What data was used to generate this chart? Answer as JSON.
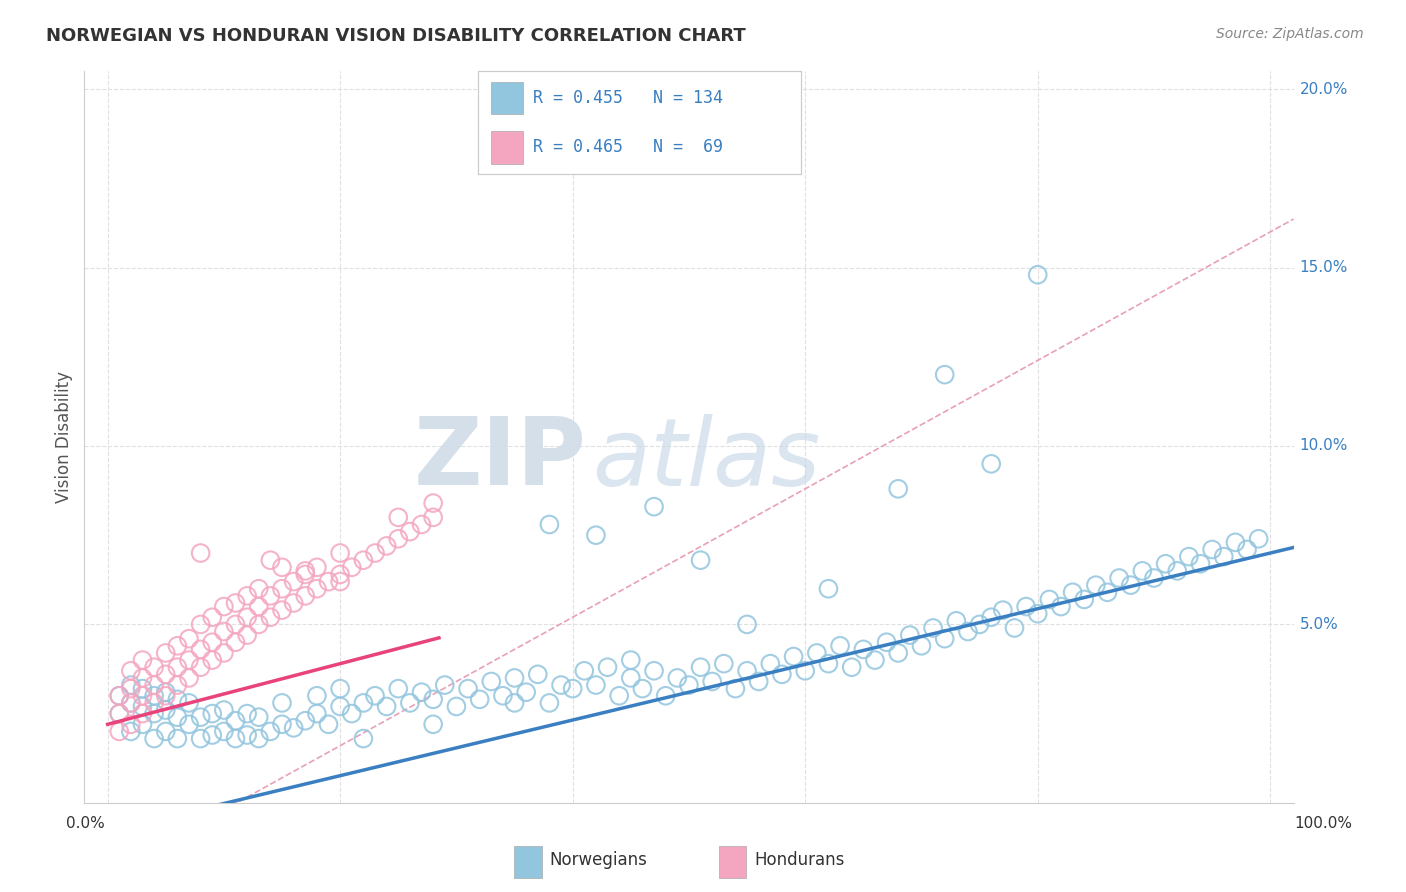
{
  "title": "NORWEGIAN VS HONDURAN VISION DISABILITY CORRELATION CHART",
  "source": "Source: ZipAtlas.com",
  "ylabel": "Vision Disability",
  "ylim": [
    0,
    0.205
  ],
  "xlim": [
    -0.02,
    1.02
  ],
  "yticks": [
    0.05,
    0.1,
    0.15,
    0.2
  ],
  "ytick_labels": [
    "5.0%",
    "10.0%",
    "15.0%",
    "20.0%"
  ],
  "blue_color": "#92C5DE",
  "pink_color": "#F4A6C0",
  "blue_edge_color": "#5B9EC9",
  "pink_edge_color": "#E87FA8",
  "blue_line_color": "#3A7FC1",
  "pink_line_color": "#E8437A",
  "dashed_line_color": "#E8A0B8",
  "legend_R_blue": "R = 0.455",
  "legend_N_blue": "N = 134",
  "legend_R_pink": "R = 0.465",
  "legend_N_pink": "N =  69",
  "watermark_zip": "ZIP",
  "watermark_atlas": "atlas",
  "background_color": "#ffffff",
  "grid_color": "#e0e0e0",
  "blue_line_intercept": -0.008,
  "blue_line_slope": 0.078,
  "pink_line_intercept": 0.022,
  "pink_line_slope": 0.085,
  "dashed_line_intercept": -0.02,
  "dashed_line_slope": 0.18,
  "blue_scatter_x": [
    0.01,
    0.01,
    0.02,
    0.02,
    0.02,
    0.03,
    0.03,
    0.03,
    0.04,
    0.04,
    0.04,
    0.05,
    0.05,
    0.05,
    0.06,
    0.06,
    0.06,
    0.07,
    0.07,
    0.08,
    0.08,
    0.09,
    0.09,
    0.1,
    0.1,
    0.11,
    0.11,
    0.12,
    0.12,
    0.13,
    0.13,
    0.14,
    0.15,
    0.15,
    0.16,
    0.17,
    0.18,
    0.18,
    0.19,
    0.2,
    0.2,
    0.21,
    0.22,
    0.23,
    0.24,
    0.25,
    0.26,
    0.27,
    0.28,
    0.29,
    0.3,
    0.31,
    0.32,
    0.33,
    0.34,
    0.35,
    0.36,
    0.37,
    0.38,
    0.39,
    0.4,
    0.41,
    0.42,
    0.43,
    0.44,
    0.45,
    0.46,
    0.47,
    0.48,
    0.49,
    0.5,
    0.51,
    0.52,
    0.53,
    0.54,
    0.55,
    0.56,
    0.57,
    0.58,
    0.59,
    0.6,
    0.61,
    0.62,
    0.63,
    0.64,
    0.65,
    0.66,
    0.67,
    0.68,
    0.69,
    0.7,
    0.71,
    0.72,
    0.73,
    0.74,
    0.75,
    0.76,
    0.77,
    0.78,
    0.79,
    0.8,
    0.81,
    0.82,
    0.83,
    0.84,
    0.85,
    0.86,
    0.87,
    0.88,
    0.89,
    0.9,
    0.91,
    0.92,
    0.93,
    0.94,
    0.95,
    0.96,
    0.97,
    0.98,
    0.99,
    0.38,
    0.47,
    0.42,
    0.51,
    0.72,
    0.8,
    0.76,
    0.68,
    0.62,
    0.55,
    0.45,
    0.35,
    0.28,
    0.22
  ],
  "blue_scatter_y": [
    0.025,
    0.03,
    0.02,
    0.028,
    0.033,
    0.022,
    0.027,
    0.032,
    0.018,
    0.025,
    0.03,
    0.02,
    0.026,
    0.031,
    0.018,
    0.024,
    0.029,
    0.022,
    0.028,
    0.018,
    0.024,
    0.019,
    0.025,
    0.02,
    0.026,
    0.018,
    0.023,
    0.019,
    0.025,
    0.018,
    0.024,
    0.02,
    0.022,
    0.028,
    0.021,
    0.023,
    0.025,
    0.03,
    0.022,
    0.027,
    0.032,
    0.025,
    0.028,
    0.03,
    0.027,
    0.032,
    0.028,
    0.031,
    0.029,
    0.033,
    0.027,
    0.032,
    0.029,
    0.034,
    0.03,
    0.035,
    0.031,
    0.036,
    0.028,
    0.033,
    0.032,
    0.037,
    0.033,
    0.038,
    0.03,
    0.035,
    0.032,
    0.037,
    0.03,
    0.035,
    0.033,
    0.038,
    0.034,
    0.039,
    0.032,
    0.037,
    0.034,
    0.039,
    0.036,
    0.041,
    0.037,
    0.042,
    0.039,
    0.044,
    0.038,
    0.043,
    0.04,
    0.045,
    0.042,
    0.047,
    0.044,
    0.049,
    0.046,
    0.051,
    0.048,
    0.05,
    0.052,
    0.054,
    0.049,
    0.055,
    0.053,
    0.057,
    0.055,
    0.059,
    0.057,
    0.061,
    0.059,
    0.063,
    0.061,
    0.065,
    0.063,
    0.067,
    0.065,
    0.069,
    0.067,
    0.071,
    0.069,
    0.073,
    0.071,
    0.074,
    0.078,
    0.083,
    0.075,
    0.068,
    0.12,
    0.148,
    0.095,
    0.088,
    0.06,
    0.05,
    0.04,
    0.028,
    0.022,
    0.018
  ],
  "pink_scatter_x": [
    0.01,
    0.01,
    0.01,
    0.02,
    0.02,
    0.02,
    0.02,
    0.03,
    0.03,
    0.03,
    0.03,
    0.04,
    0.04,
    0.04,
    0.05,
    0.05,
    0.05,
    0.06,
    0.06,
    0.06,
    0.07,
    0.07,
    0.07,
    0.08,
    0.08,
    0.08,
    0.09,
    0.09,
    0.09,
    0.1,
    0.1,
    0.11,
    0.11,
    0.11,
    0.12,
    0.12,
    0.12,
    0.13,
    0.13,
    0.14,
    0.14,
    0.15,
    0.15,
    0.15,
    0.16,
    0.16,
    0.17,
    0.17,
    0.18,
    0.18,
    0.19,
    0.2,
    0.2,
    0.21,
    0.22,
    0.23,
    0.24,
    0.25,
    0.25,
    0.26,
    0.27,
    0.28,
    0.28,
    0.08,
    0.13,
    0.17,
    0.1,
    0.2,
    0.14
  ],
  "pink_scatter_y": [
    0.02,
    0.025,
    0.03,
    0.022,
    0.028,
    0.032,
    0.037,
    0.025,
    0.03,
    0.035,
    0.04,
    0.028,
    0.033,
    0.038,
    0.03,
    0.036,
    0.042,
    0.033,
    0.038,
    0.044,
    0.035,
    0.04,
    0.046,
    0.038,
    0.043,
    0.05,
    0.04,
    0.045,
    0.052,
    0.042,
    0.048,
    0.045,
    0.05,
    0.056,
    0.047,
    0.052,
    0.058,
    0.05,
    0.055,
    0.052,
    0.058,
    0.054,
    0.06,
    0.066,
    0.056,
    0.062,
    0.058,
    0.064,
    0.06,
    0.066,
    0.062,
    0.064,
    0.07,
    0.066,
    0.068,
    0.07,
    0.072,
    0.074,
    0.08,
    0.076,
    0.078,
    0.08,
    0.084,
    0.07,
    0.06,
    0.065,
    0.055,
    0.062,
    0.068
  ]
}
